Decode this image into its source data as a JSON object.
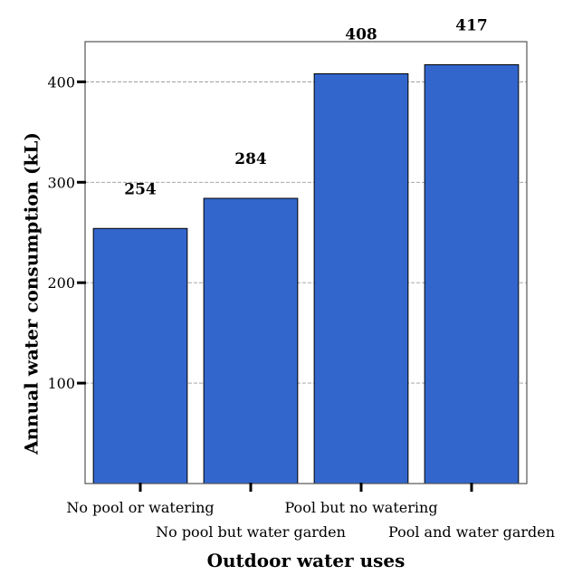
{
  "chart_data": {
    "type": "bar",
    "categories": [
      "No pool or watering",
      "No pool but water garden",
      "Pool but no watering",
      "Pool and water garden"
    ],
    "values": [
      254,
      284,
      408,
      417
    ],
    "data_labels": [
      "254",
      "284",
      "408",
      "417"
    ],
    "xlabel": "Outdoor water uses",
    "ylabel": "Annual water consumption (kL)",
    "ylim": [
      0,
      440
    ],
    "yticks": [
      100,
      200,
      300,
      400
    ],
    "ytick_labels": [
      "100",
      "200",
      "300",
      "400"
    ],
    "grid": true,
    "bar_color": "#3366cc"
  }
}
